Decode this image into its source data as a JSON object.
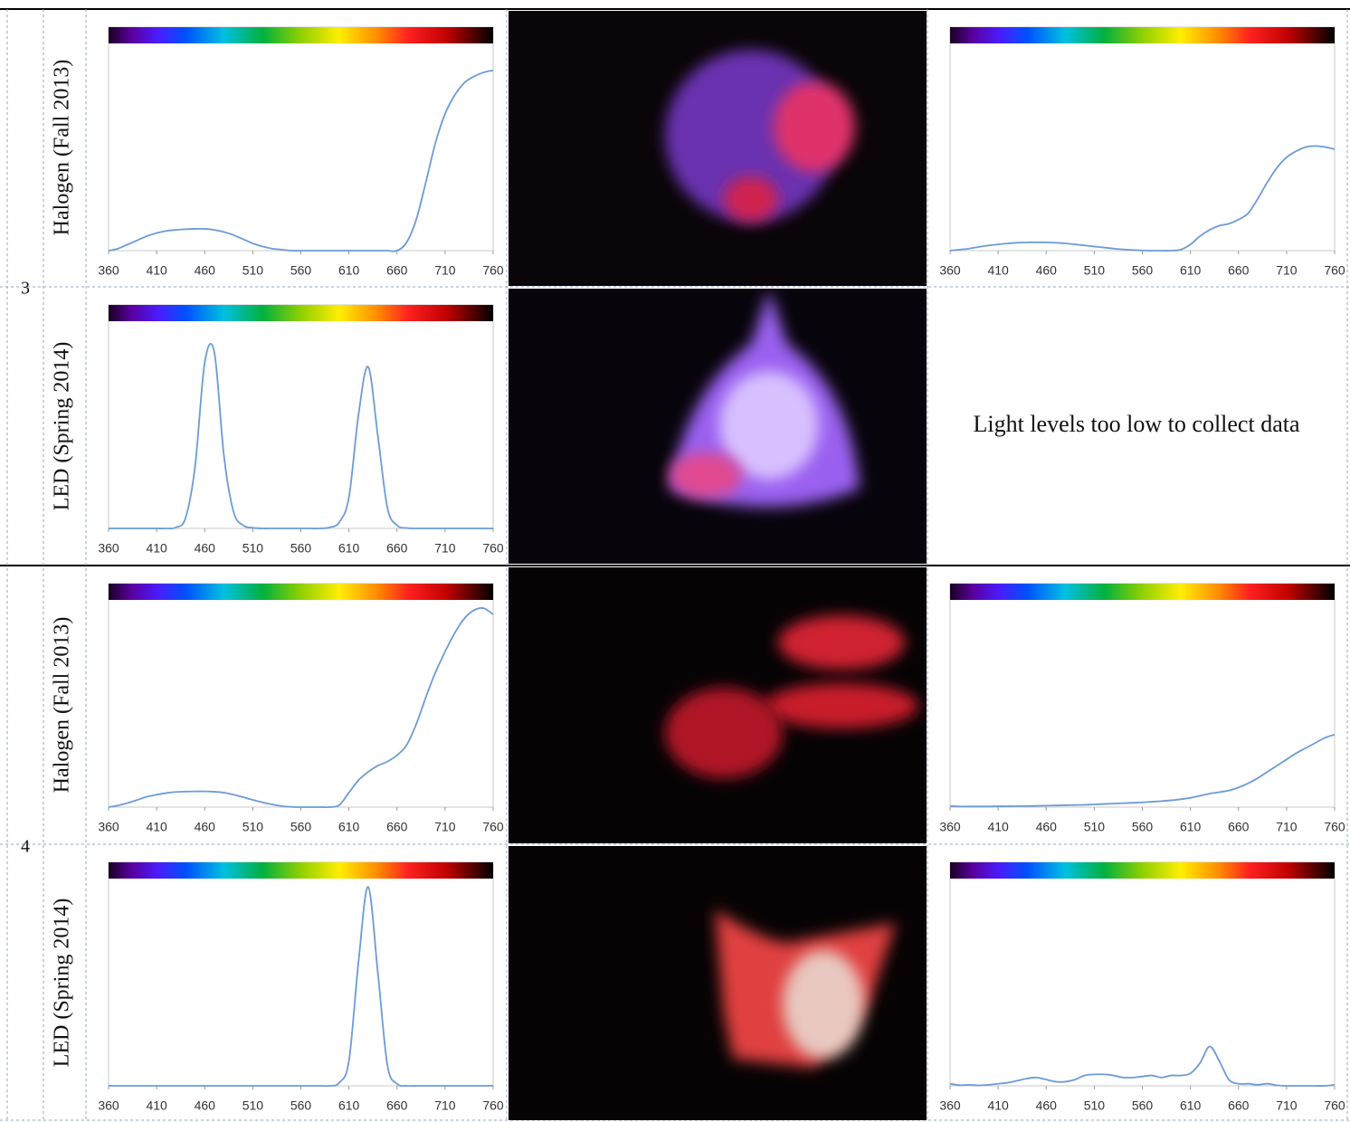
{
  "rows": [
    {
      "group": "3",
      "label": "Halogen (Fall 2013)"
    },
    {
      "label": "LED (Spring 2014)",
      "note": "Light levels too low to collect data"
    },
    {
      "group": "4",
      "label": "Halogen (Fall 2013)"
    },
    {
      "label": "LED (Spring 2014)"
    }
  ],
  "chart_data": [
    {
      "type": "line",
      "color": "#6c9bd6",
      "xlim": [
        360,
        760
      ],
      "ylim": [
        0,
        100
      ],
      "xticks": [
        360,
        410,
        460,
        510,
        560,
        610,
        660,
        710,
        760
      ],
      "x": [
        360,
        370,
        380,
        390,
        400,
        410,
        420,
        430,
        440,
        450,
        460,
        470,
        480,
        490,
        500,
        510,
        520,
        530,
        540,
        550,
        560,
        570,
        580,
        590,
        600,
        610,
        620,
        630,
        640,
        650,
        660,
        670,
        680,
        690,
        700,
        710,
        720,
        730,
        740,
        750,
        760
      ],
      "values": [
        0,
        1,
        3,
        5,
        7,
        8.5,
        9.5,
        10,
        10.3,
        10.5,
        10.5,
        10,
        9,
        7.5,
        5.5,
        3.5,
        2,
        1,
        0.5,
        0,
        0,
        0,
        0,
        0,
        0,
        0,
        0,
        0,
        0,
        0,
        0,
        4,
        15,
        33,
        52,
        66,
        75,
        81,
        84,
        86,
        87
      ]
    },
    {
      "type": "line",
      "color": "#6c9bd6",
      "xlim": [
        360,
        760
      ],
      "ylim": [
        0,
        100
      ],
      "xticks": [
        360,
        410,
        460,
        510,
        560,
        610,
        660,
        710,
        760
      ],
      "x": [
        360,
        370,
        380,
        390,
        400,
        410,
        420,
        430,
        440,
        450,
        460,
        470,
        480,
        490,
        500,
        510,
        520,
        530,
        540,
        550,
        560,
        570,
        580,
        590,
        600,
        610,
        620,
        630,
        640,
        650,
        660,
        670,
        680,
        690,
        700,
        710,
        720,
        730,
        740,
        750,
        760
      ],
      "values": [
        0,
        0.5,
        1,
        1.8,
        2.5,
        3,
        3.5,
        3.8,
        4,
        4,
        4,
        3.8,
        3.5,
        3,
        2.5,
        2,
        1.5,
        1,
        0.6,
        0.3,
        0.1,
        0,
        0,
        0,
        0.5,
        3,
        7,
        10,
        12,
        13,
        15,
        18,
        25,
        33,
        40,
        45,
        48,
        50,
        50.5,
        50,
        49
      ]
    },
    {
      "type": "line",
      "color": "#6c9bd6",
      "xlim": [
        360,
        760
      ],
      "ylim": [
        0,
        100
      ],
      "xticks": [
        360,
        410,
        460,
        510,
        560,
        610,
        660,
        710,
        760
      ],
      "x": [
        360,
        370,
        380,
        390,
        400,
        410,
        420,
        430,
        440,
        450,
        460,
        470,
        480,
        490,
        500,
        510,
        520,
        530,
        540,
        550,
        560,
        570,
        580,
        590,
        600,
        610,
        620,
        630,
        640,
        650,
        660,
        670,
        680,
        690,
        700,
        710,
        720,
        730,
        740,
        750,
        760
      ],
      "values": [
        0,
        0,
        0,
        0,
        0,
        0,
        0,
        0.5,
        5,
        30,
        80,
        85,
        35,
        8,
        1.5,
        0.3,
        0,
        0,
        0,
        0,
        0,
        0,
        0,
        0.5,
        3,
        15,
        55,
        78,
        45,
        10,
        1.5,
        0.2,
        0,
        0,
        0,
        0,
        0,
        0,
        0,
        0,
        0
      ]
    },
    {
      "type": "line",
      "color": "#6c9bd6",
      "xlim": [
        360,
        760
      ],
      "ylim": [
        0,
        100
      ],
      "xticks": [
        360,
        410,
        460,
        510,
        560,
        610,
        660,
        710,
        760
      ],
      "x": [
        360,
        370,
        380,
        390,
        400,
        410,
        420,
        430,
        440,
        450,
        460,
        470,
        480,
        490,
        500,
        510,
        520,
        530,
        540,
        550,
        560,
        570,
        580,
        590,
        600,
        610,
        620,
        630,
        640,
        650,
        660,
        670,
        680,
        690,
        700,
        710,
        720,
        730,
        740,
        750,
        760
      ],
      "values": [
        0,
        0.8,
        2,
        3.5,
        5,
        6,
        6.8,
        7.3,
        7.5,
        7.6,
        7.6,
        7.4,
        7,
        6,
        4.8,
        3.5,
        2.3,
        1.3,
        0.5,
        0.1,
        0,
        0,
        0,
        0,
        1,
        7,
        13,
        17,
        20,
        22,
        25,
        30,
        40,
        53,
        65,
        75,
        84,
        91,
        95,
        96,
        93
      ]
    },
    {
      "type": "line",
      "color": "#6c9bd6",
      "xlim": [
        360,
        760
      ],
      "ylim": [
        0,
        100
      ],
      "xticks": [
        360,
        410,
        460,
        510,
        560,
        610,
        660,
        710,
        760
      ],
      "x": [
        360,
        370,
        380,
        390,
        400,
        410,
        420,
        430,
        440,
        450,
        460,
        470,
        480,
        490,
        500,
        510,
        520,
        530,
        540,
        550,
        560,
        570,
        580,
        590,
        600,
        610,
        620,
        630,
        640,
        650,
        660,
        670,
        680,
        690,
        700,
        710,
        720,
        730,
        740,
        750,
        760
      ],
      "values": [
        0.5,
        0.3,
        0.3,
        0.3,
        0.3,
        0.4,
        0.4,
        0.5,
        0.5,
        0.6,
        0.7,
        0.8,
        0.9,
        1,
        1.1,
        1.3,
        1.5,
        1.7,
        1.9,
        2.1,
        2.3,
        2.6,
        2.9,
        3.3,
        3.8,
        4.5,
        5.5,
        6.5,
        7.2,
        8,
        9.5,
        11.5,
        14,
        17,
        20,
        23,
        26,
        28.5,
        31,
        33.5,
        35
      ]
    },
    {
      "type": "line",
      "color": "#6c9bd6",
      "xlim": [
        360,
        760
      ],
      "ylim": [
        0,
        100
      ],
      "xticks": [
        360,
        410,
        460,
        510,
        560,
        610,
        660,
        710,
        760
      ],
      "x": [
        360,
        370,
        380,
        390,
        400,
        410,
        420,
        430,
        440,
        450,
        460,
        470,
        480,
        490,
        500,
        510,
        520,
        530,
        540,
        550,
        560,
        570,
        580,
        590,
        600,
        610,
        620,
        630,
        640,
        650,
        660,
        670,
        680,
        690,
        700,
        710,
        720,
        730,
        740,
        750,
        760
      ],
      "values": [
        0,
        0,
        0,
        0,
        0,
        0,
        0,
        0,
        0,
        0,
        0,
        0,
        0,
        0,
        0,
        0,
        0,
        0,
        0,
        0,
        0,
        0,
        0,
        0,
        1.5,
        12,
        60,
        96,
        55,
        10,
        1,
        0,
        0,
        0,
        0,
        0,
        0,
        0,
        0,
        0,
        0
      ]
    },
    {
      "type": "line",
      "color": "#6c9bd6",
      "xlim": [
        360,
        760
      ],
      "ylim": [
        0,
        100
      ],
      "xticks": [
        360,
        410,
        460,
        510,
        560,
        610,
        660,
        710,
        760
      ],
      "x": [
        360,
        370,
        380,
        390,
        400,
        410,
        420,
        430,
        440,
        450,
        460,
        470,
        480,
        490,
        500,
        510,
        520,
        530,
        540,
        550,
        560,
        570,
        580,
        590,
        600,
        610,
        620,
        630,
        640,
        650,
        660,
        670,
        680,
        690,
        700,
        710,
        720,
        730,
        740,
        750,
        760
      ],
      "values": [
        1,
        0.3,
        0.5,
        0.2,
        0.5,
        1,
        1.5,
        2.5,
        3.5,
        4,
        3,
        2,
        2,
        3,
        5,
        5.5,
        5.5,
        5,
        4,
        4,
        4.5,
        5,
        4,
        5,
        5,
        6,
        11,
        19,
        12,
        3,
        1,
        1,
        0.5,
        1,
        0.2,
        0,
        0,
        0,
        0,
        0,
        0.5
      ]
    }
  ]
}
